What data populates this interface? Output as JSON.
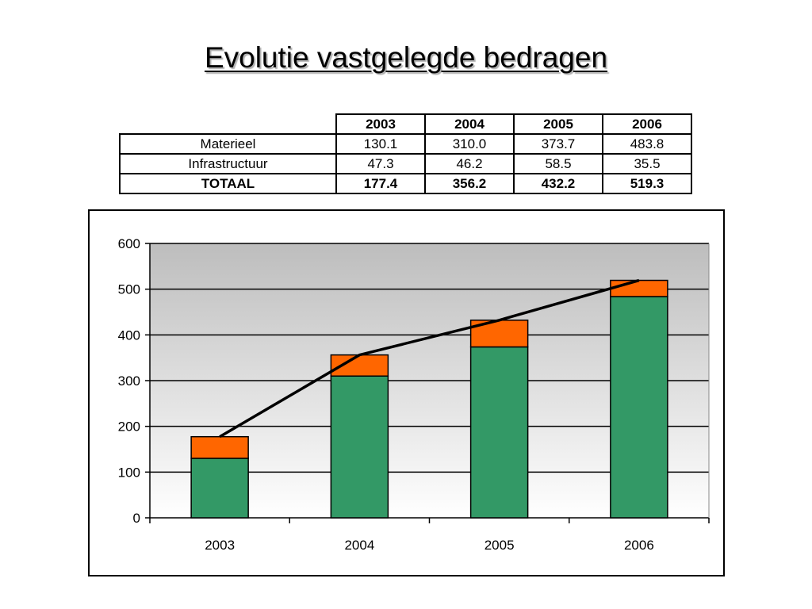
{
  "title": "Evolutie vastgelegde bedragen",
  "table": {
    "columns": [
      "2003",
      "2004",
      "2005",
      "2006"
    ],
    "rows": [
      {
        "label": "Materieel",
        "values": [
          "130.1",
          "310.0",
          "373.7",
          "483.8"
        ]
      },
      {
        "label": "Infrastructuur",
        "values": [
          "47.3",
          "46.2",
          "58.5",
          "35.5"
        ]
      },
      {
        "label": "TOTAAL",
        "values": [
          "177.4",
          "356.2",
          "432.2",
          "519.3"
        ]
      }
    ]
  },
  "chart_data": {
    "type": "bar",
    "stacked": true,
    "categories": [
      "2003",
      "2004",
      "2005",
      "2006"
    ],
    "series": [
      {
        "values": [
          130.1,
          310.0,
          373.7,
          483.8
        ],
        "color": "#339966"
      },
      {
        "values": [
          47.3,
          46.2,
          58.5,
          35.5
        ],
        "color": "#ff6600"
      }
    ],
    "line_series": {
      "values": [
        177.4,
        356.2,
        432.2,
        519.3
      ],
      "color": "#000000"
    },
    "ylim": [
      0,
      600
    ],
    "yticks": [
      0,
      100,
      200,
      300,
      400,
      500,
      600
    ],
    "grid": true,
    "legend": "none",
    "plot_background": "gradient-gray-to-white"
  }
}
